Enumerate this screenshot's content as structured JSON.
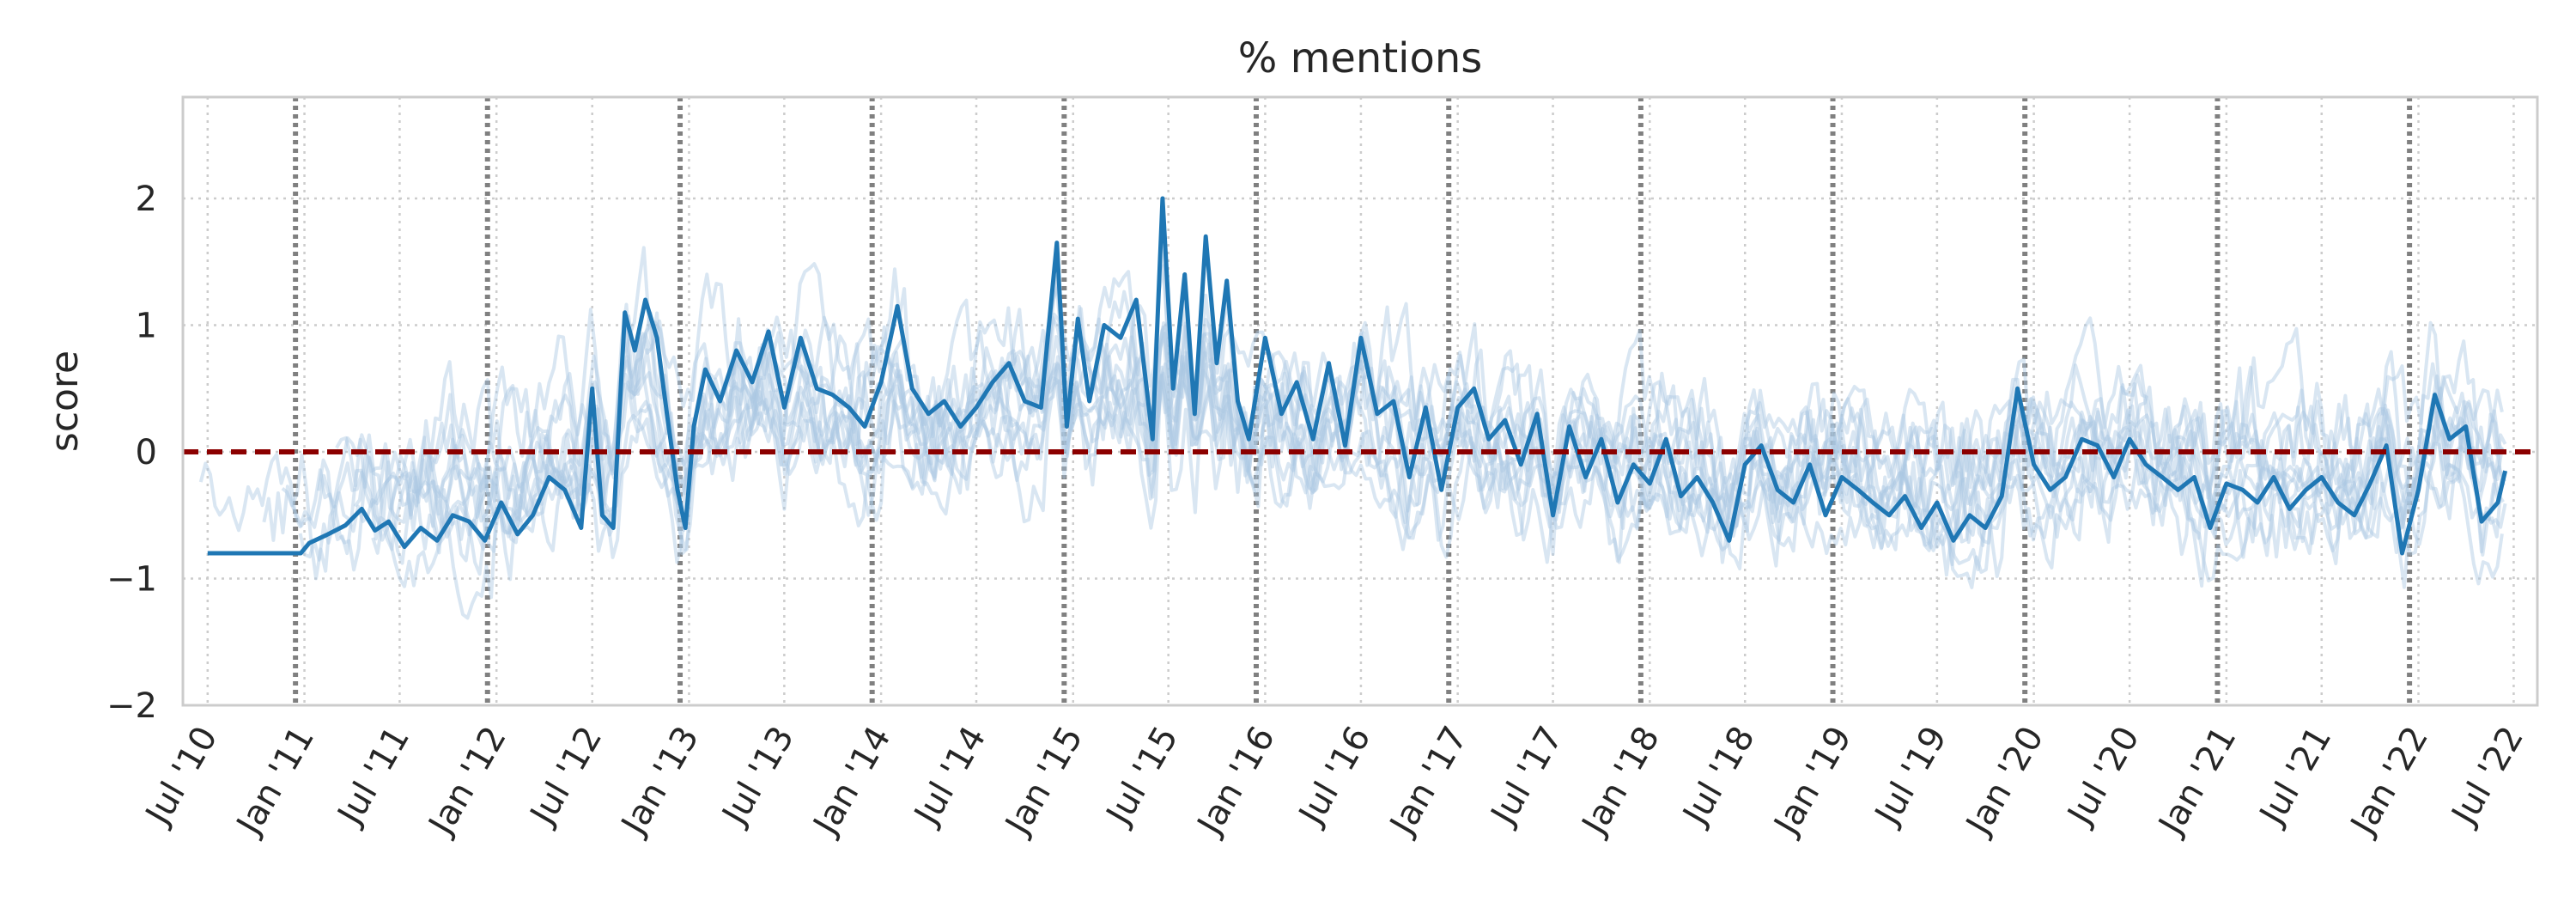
{
  "chart_data": {
    "type": "line",
    "title": "% mentions",
    "xlabel": "",
    "ylabel": "score",
    "xlim": [
      "2010-05-15",
      "2022-08-15"
    ],
    "ylim": [
      -2,
      2.8
    ],
    "yticks": [
      -2,
      -1,
      0,
      1,
      2
    ],
    "ytick_labels": [
      "−2",
      "−1",
      "0",
      "1",
      "2"
    ],
    "xticks": [
      {
        "date": "2010-07-01",
        "label": "Jul '10"
      },
      {
        "date": "2011-01-01",
        "label": "Jan '11"
      },
      {
        "date": "2011-07-01",
        "label": "Jul '11"
      },
      {
        "date": "2012-01-01",
        "label": "Jan '12"
      },
      {
        "date": "2012-07-01",
        "label": "Jul '12"
      },
      {
        "date": "2013-01-01",
        "label": "Jan '13"
      },
      {
        "date": "2013-07-01",
        "label": "Jul '13"
      },
      {
        "date": "2014-01-01",
        "label": "Jan '14"
      },
      {
        "date": "2014-07-01",
        "label": "Jul '14"
      },
      {
        "date": "2015-01-01",
        "label": "Jan '15"
      },
      {
        "date": "2015-07-01",
        "label": "Jul '15"
      },
      {
        "date": "2016-01-01",
        "label": "Jan '16"
      },
      {
        "date": "2016-07-01",
        "label": "Jul '16"
      },
      {
        "date": "2017-01-01",
        "label": "Jan '17"
      },
      {
        "date": "2017-07-01",
        "label": "Jul '17"
      },
      {
        "date": "2018-01-01",
        "label": "Jan '18"
      },
      {
        "date": "2018-07-01",
        "label": "Jul '18"
      },
      {
        "date": "2019-01-01",
        "label": "Jan '19"
      },
      {
        "date": "2019-07-01",
        "label": "Jul '19"
      },
      {
        "date": "2020-01-01",
        "label": "Jan '20"
      },
      {
        "date": "2020-07-01",
        "label": "Jul '20"
      },
      {
        "date": "2021-01-01",
        "label": "Jan '21"
      },
      {
        "date": "2021-07-01",
        "label": "Jul '21"
      },
      {
        "date": "2022-01-01",
        "label": "Jan '22"
      },
      {
        "date": "2022-07-01",
        "label": "Jul '22"
      }
    ],
    "grid": true,
    "reference_line": {
      "y": 0,
      "color": "#8b0000",
      "style": "dashed"
    },
    "vertical_markers": {
      "dates": [
        "2010-12-15",
        "2011-12-15",
        "2012-12-15",
        "2013-12-15",
        "2014-12-15",
        "2015-12-15",
        "2016-12-15",
        "2017-12-15",
        "2018-12-15",
        "2019-12-15",
        "2020-12-15",
        "2021-12-15"
      ],
      "color": "#808080",
      "style": "dotted"
    },
    "colors": {
      "main": "#1f77b4",
      "faint": "#aac8e2",
      "grid": "#cccccc",
      "frame": "#cccccc"
    },
    "series": [
      {
        "role": "highlighted",
        "x": [
          "2010-07-01",
          "2010-12-25",
          "2011-01-10",
          "2011-02-15",
          "2011-03-20",
          "2011-04-20",
          "2011-05-15",
          "2011-06-10",
          "2011-07-10",
          "2011-08-10",
          "2011-09-10",
          "2011-10-10",
          "2011-11-10",
          "2011-12-10",
          "2012-01-10",
          "2012-02-10",
          "2012-03-10",
          "2012-04-10",
          "2012-05-10",
          "2012-06-10",
          "2012-07-01",
          "2012-07-20",
          "2012-08-10",
          "2012-09-01",
          "2012-09-20",
          "2012-10-10",
          "2012-11-01",
          "2012-11-20",
          "2012-12-10",
          "2012-12-25",
          "2013-01-10",
          "2013-02-01",
          "2013-03-01",
          "2013-04-01",
          "2013-05-01",
          "2013-06-01",
          "2013-07-01",
          "2013-08-01",
          "2013-09-01",
          "2013-10-01",
          "2013-11-01",
          "2013-12-01",
          "2014-01-01",
          "2014-02-01",
          "2014-03-01",
          "2014-04-01",
          "2014-05-01",
          "2014-06-01",
          "2014-07-01",
          "2014-08-01",
          "2014-09-01",
          "2014-10-01",
          "2014-11-01",
          "2014-12-01",
          "2014-12-20",
          "2015-01-10",
          "2015-02-01",
          "2015-03-01",
          "2015-04-01",
          "2015-05-01",
          "2015-06-01",
          "2015-06-20",
          "2015-07-10",
          "2015-08-01",
          "2015-08-20",
          "2015-09-10",
          "2015-10-01",
          "2015-10-20",
          "2015-11-10",
          "2015-12-01",
          "2016-01-01",
          "2016-02-01",
          "2016-03-01",
          "2016-04-01",
          "2016-05-01",
          "2016-06-01",
          "2016-07-01",
          "2016-08-01",
          "2016-09-01",
          "2016-10-01",
          "2016-11-01",
          "2016-12-01",
          "2017-01-01",
          "2017-02-01",
          "2017-03-01",
          "2017-04-01",
          "2017-05-01",
          "2017-06-01",
          "2017-07-01",
          "2017-08-01",
          "2017-09-01",
          "2017-10-01",
          "2017-11-01",
          "2017-12-01",
          "2018-01-01",
          "2018-02-01",
          "2018-03-01",
          "2018-04-01",
          "2018-05-01",
          "2018-06-01",
          "2018-07-01",
          "2018-08-01",
          "2018-09-01",
          "2018-10-01",
          "2018-11-01",
          "2018-12-01",
          "2019-01-01",
          "2019-02-01",
          "2019-03-01",
          "2019-04-01",
          "2019-05-01",
          "2019-06-01",
          "2019-07-01",
          "2019-08-01",
          "2019-09-01",
          "2019-10-01",
          "2019-11-01",
          "2019-12-01",
          "2020-01-01",
          "2020-02-01",
          "2020-03-01",
          "2020-04-01",
          "2020-05-01",
          "2020-06-01",
          "2020-07-01",
          "2020-08-01",
          "2020-09-01",
          "2020-10-01",
          "2020-11-01",
          "2020-12-01",
          "2021-01-01",
          "2021-02-01",
          "2021-03-01",
          "2021-04-01",
          "2021-05-01",
          "2021-06-01",
          "2021-07-01",
          "2021-08-01",
          "2021-09-01",
          "2021-10-01",
          "2021-11-01",
          "2021-12-01",
          "2022-01-01",
          "2022-02-01",
          "2022-03-01",
          "2022-04-01",
          "2022-05-01",
          "2022-06-01",
          "2022-06-15"
        ],
        "y": [
          -0.8,
          -0.8,
          -0.72,
          -0.65,
          -0.58,
          -0.45,
          -0.62,
          -0.55,
          -0.75,
          -0.6,
          -0.7,
          -0.5,
          -0.55,
          -0.7,
          -0.4,
          -0.65,
          -0.5,
          -0.2,
          -0.3,
          -0.6,
          0.5,
          -0.5,
          -0.6,
          1.1,
          0.8,
          1.2,
          0.9,
          0.3,
          -0.3,
          -0.6,
          0.2,
          0.65,
          0.4,
          0.8,
          0.55,
          0.95,
          0.35,
          0.9,
          0.5,
          0.45,
          0.35,
          0.2,
          0.55,
          1.15,
          0.5,
          0.3,
          0.4,
          0.2,
          0.35,
          0.55,
          0.7,
          0.4,
          0.35,
          1.65,
          0.2,
          1.05,
          0.4,
          1.0,
          0.9,
          1.2,
          0.1,
          2.0,
          0.5,
          1.4,
          0.3,
          1.7,
          0.7,
          1.35,
          0.4,
          0.1,
          0.9,
          0.3,
          0.55,
          0.1,
          0.7,
          0.05,
          0.9,
          0.3,
          0.4,
          -0.2,
          0.35,
          -0.3,
          0.35,
          0.5,
          0.1,
          0.25,
          -0.1,
          0.3,
          -0.5,
          0.2,
          -0.2,
          0.1,
          -0.4,
          -0.1,
          -0.25,
          0.1,
          -0.35,
          -0.2,
          -0.4,
          -0.7,
          -0.1,
          0.05,
          -0.3,
          -0.4,
          -0.1,
          -0.5,
          -0.2,
          -0.3,
          -0.4,
          -0.5,
          -0.35,
          -0.6,
          -0.4,
          -0.7,
          -0.5,
          -0.6,
          -0.35,
          0.5,
          -0.1,
          -0.3,
          -0.2,
          0.1,
          0.05,
          -0.2,
          0.1,
          -0.1,
          -0.2,
          -0.3,
          -0.2,
          -0.6,
          -0.25,
          -0.3,
          -0.4,
          -0.2,
          -0.45,
          -0.3,
          -0.2,
          -0.4,
          -0.5,
          -0.25,
          0.05,
          -0.8,
          -0.3,
          0.45,
          0.1,
          0.2,
          -0.55,
          -0.4,
          -0.15
        ]
      }
    ]
  }
}
